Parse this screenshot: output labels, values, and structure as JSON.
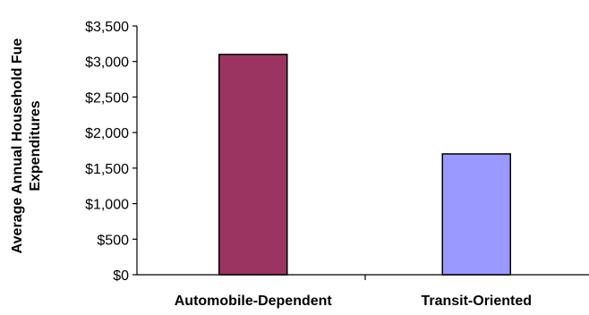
{
  "chart_data": {
    "type": "bar",
    "title": "",
    "xlabel": "",
    "ylabel_lines": [
      "Average Annual Household Fue",
      "Expenditures"
    ],
    "categories": [
      "Automobile-Dependent",
      "Transit-Oriented"
    ],
    "values": [
      3100,
      1700
    ],
    "bar_colors": [
      "#9b3460",
      "#9999ff"
    ],
    "ylim": [
      0,
      3500
    ],
    "yticks": [
      0,
      500,
      1000,
      1500,
      2000,
      2500,
      3000,
      3500
    ],
    "ytick_labels": [
      "$0",
      "$500",
      "$1,000",
      "$1,500",
      "$2,000",
      "$2,500",
      "$3,000",
      "$3,500"
    ],
    "grid": false,
    "legend": "none"
  }
}
